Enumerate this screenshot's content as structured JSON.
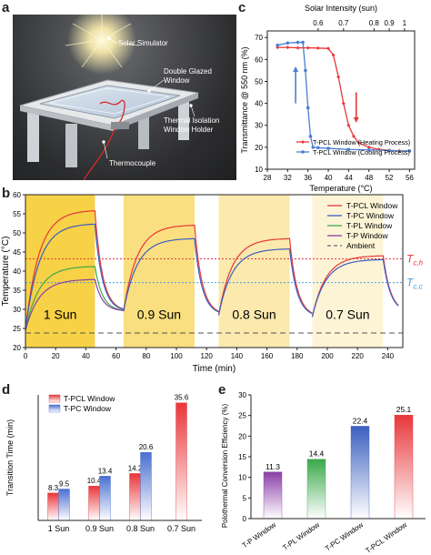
{
  "panel_a": {
    "label": "a",
    "annotations": {
      "solar_simulator": "Solar Simulator",
      "double_glazed_window": "Double Glazed Window",
      "thermal_isolation_holder": "Thermal Isolation Window Holder",
      "thermocouple": "Thermocouple"
    }
  },
  "panel_labels": {
    "b": "b",
    "c": "c",
    "d": "d",
    "e": "e"
  },
  "chart_data": [
    {
      "id": "c",
      "type": "line",
      "xlabel": "Temperature (°C)",
      "ylabel": "Transmittance @ 550 nm (%)",
      "top_axis_label": "Solar Intensity (sun)",
      "top_ticks": [
        "0.6",
        "0.7",
        "0.8",
        "0.9",
        "1"
      ],
      "top_tick_positions": [
        38,
        43,
        49,
        52,
        55
      ],
      "xlim": [
        28,
        57
      ],
      "ylim": [
        10,
        73
      ],
      "xticks": [
        28,
        32,
        36,
        40,
        44,
        48,
        52,
        56
      ],
      "yticks": [
        10,
        20,
        30,
        40,
        50,
        60,
        70
      ],
      "legend_position": "lower-right",
      "series": [
        {
          "name": "T-PCL Window (Heating Process)",
          "color": "#e8363a",
          "x": [
            30,
            32,
            34,
            36,
            38,
            40,
            41,
            42,
            43,
            44,
            45,
            46,
            48,
            50,
            52,
            54,
            56
          ],
          "y": [
            65.5,
            65.5,
            65.3,
            65.3,
            65.2,
            65,
            62,
            52,
            40,
            30,
            25,
            22,
            20,
            19,
            18.6,
            18.4,
            18.3
          ]
        },
        {
          "name": "T-PCL Window (Cooling Process)",
          "color": "#4a7fd0",
          "x": [
            30,
            32,
            34,
            35,
            35.5,
            36,
            36.5,
            37,
            38,
            40,
            44,
            48,
            52,
            56
          ],
          "y": [
            66.5,
            67.5,
            67.8,
            67.8,
            55,
            38,
            25,
            20,
            19.8,
            19.5,
            19,
            18.8,
            18.5,
            18.3
          ]
        }
      ],
      "arrows": [
        "up-blue",
        "down-red"
      ]
    },
    {
      "id": "b",
      "type": "line",
      "xlabel": "Time (min)",
      "ylabel": "Temperature (°C)",
      "xlim": [
        0,
        250
      ],
      "ylim": [
        20,
        60
      ],
      "xticks": [
        0,
        20,
        40,
        60,
        80,
        100,
        120,
        140,
        160,
        180,
        200,
        220,
        240
      ],
      "yticks": [
        20,
        25,
        30,
        35,
        40,
        45,
        50,
        55,
        60
      ],
      "bands": [
        {
          "start": 0,
          "end": 46,
          "label": "1 Sun",
          "color": "#f7d146"
        },
        {
          "start": 65,
          "end": 112,
          "label": "0.9 Sun",
          "color": "#f9df80"
        },
        {
          "start": 128,
          "end": 175,
          "label": "0.8 Sun",
          "color": "#fbe9ad"
        },
        {
          "start": 190,
          "end": 237,
          "label": "0.7 Sun",
          "color": "#fdf4d6"
        }
      ],
      "reference_lines": [
        {
          "label": "T",
          "subscript": "c,h",
          "value": 43.2,
          "color": "#e8363a"
        },
        {
          "label": "T",
          "subscript": "c,c",
          "value": 37.0,
          "color": "#4a9fe0"
        }
      ],
      "ambient": 23.8,
      "legend_position": "top-right",
      "series": [
        {
          "name": "T-PCL Window",
          "color": "#e8363a",
          "style": "solid"
        },
        {
          "name": "T-PC Window",
          "color": "#3a5fbf",
          "style": "solid"
        },
        {
          "name": "T-PL Window",
          "color": "#3aa84a",
          "style": "solid"
        },
        {
          "name": "T-P Window",
          "color": "#8b3fa8",
          "style": "solid"
        },
        {
          "name": "Ambient",
          "color": "#666666",
          "style": "dashed"
        }
      ],
      "cycles": [
        {
          "start": 0,
          "end": 46,
          "cool_end": 65,
          "base": 24.5,
          "peak": {
            "T-PCL Window": 55.8,
            "T-PC Window": 52.3,
            "T-PL Window": 41.2,
            "T-P Window": 37.8
          }
        },
        {
          "start": 65,
          "end": 112,
          "cool_end": 128,
          "base": 29.5,
          "peak": {
            "T-PCL Window": 52.0,
            "T-PC Window": 48.5
          }
        },
        {
          "start": 128,
          "end": 175,
          "cool_end": 190,
          "base": 28.5,
          "peak": {
            "T-PCL Window": 48.5,
            "T-PC Window": 45.8
          }
        },
        {
          "start": 190,
          "end": 237,
          "cool_end": 247,
          "base": 28.0,
          "peak": {
            "T-PCL Window": 44.0,
            "T-PC Window": 43.0
          }
        }
      ]
    },
    {
      "id": "d",
      "type": "bar",
      "ylabel": "Transition Time (min)",
      "ylim": [
        0,
        38
      ],
      "categories": [
        "1 Sun",
        "0.9 Sun",
        "0.8 Sun",
        "0.7 Sun"
      ],
      "legend_position": "top-left",
      "series": [
        {
          "name": "T-PCL Window",
          "color": "#e8363a",
          "values": [
            8.3,
            10.4,
            14.2,
            35.6
          ]
        },
        {
          "name": "T-PC Window",
          "color": "#4a6fd0",
          "values": [
            9.5,
            13.4,
            20.6,
            null
          ]
        }
      ]
    },
    {
      "id": "e",
      "type": "bar",
      "ylabel": "Polothermal Conversion Efficiency (%)",
      "ylim": [
        0,
        30
      ],
      "yticks": [
        0,
        5,
        10,
        15,
        20,
        25,
        30
      ],
      "categories": [
        "T-P Window",
        "T-PL Window",
        "T-PC Window",
        "T-PCL Window"
      ],
      "values": [
        11.3,
        14.4,
        22.4,
        25.1
      ],
      "colors": [
        "#8b3fa8",
        "#3aa84a",
        "#3a5fbf",
        "#e8363a"
      ]
    }
  ]
}
